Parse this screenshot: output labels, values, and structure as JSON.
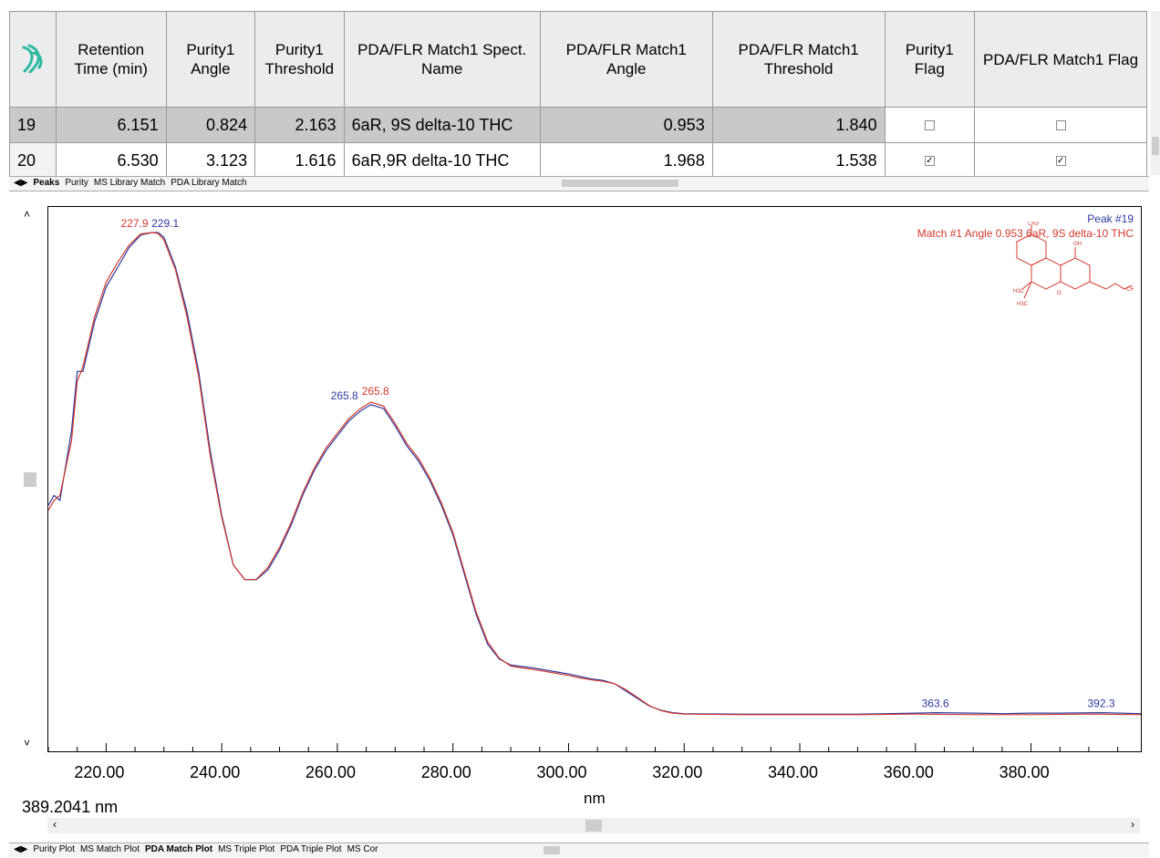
{
  "table": {
    "headers": [
      "",
      "Retention Time (min)",
      "Purity1 Angle",
      "Purity1 Threshold",
      "PDA/FLR Match1 Spect. Name",
      "PDA/FLR Match1 Angle",
      "PDA/FLR Match1 Threshold",
      "Purity1 Flag",
      "PDA/FLR Match1 Flag"
    ],
    "rows": [
      {
        "id": "19",
        "rt": "6.151",
        "purity_angle": "0.824",
        "purity_threshold": "2.163",
        "spect_name": "6aR, 9S delta-10 THC",
        "match_angle": "0.953",
        "match_threshold": "1.840",
        "purity_flag": false,
        "match_flag": false,
        "selected": true
      },
      {
        "id": "20",
        "rt": "6.530",
        "purity_angle": "3.123",
        "purity_threshold": "1.616",
        "spect_name": "6aR,9R delta-10 THC",
        "match_angle": "1.968",
        "match_threshold": "1.538",
        "purity_flag": true,
        "match_flag": true,
        "selected": false
      }
    ]
  },
  "top_tabs": [
    "Peaks",
    "Purity",
    "MS Library Match",
    "PDA Library Match"
  ],
  "top_tabs_active": "Peaks",
  "bottom_tabs": [
    "Purity Plot",
    "MS Match Plot",
    "PDA Match Plot",
    "MS Triple Plot",
    "PDA Triple Plot",
    "MS Cor"
  ],
  "bottom_tabs_active": "PDA Match Plot",
  "chart_data": {
    "type": "line",
    "xlabel": "nm",
    "xlim": [
      210,
      399
    ],
    "ylim": [
      0,
      1
    ],
    "x_ticks": [
      "220.00",
      "240.00",
      "260.00",
      "280.00",
      "300.00",
      "320.00",
      "340.00",
      "360.00",
      "380.00"
    ],
    "legend": {
      "peak": "Peak #19",
      "match": "Match #1 Angle 0.953 6aR, 9S delta-10 THC"
    },
    "series": [
      {
        "name": "Peak #19",
        "color": "#2e3a9e",
        "points": [
          [
            210,
            0.45
          ],
          [
            211,
            0.47
          ],
          [
            212,
            0.46
          ],
          [
            214,
            0.6
          ],
          [
            215,
            0.72
          ],
          [
            216,
            0.72
          ],
          [
            218,
            0.82
          ],
          [
            220,
            0.89
          ],
          [
            222,
            0.93
          ],
          [
            224,
            0.97
          ],
          [
            226,
            0.995
          ],
          [
            228,
            1.0
          ],
          [
            229,
            1.0
          ],
          [
            230,
            0.99
          ],
          [
            232,
            0.93
          ],
          [
            234,
            0.84
          ],
          [
            236,
            0.72
          ],
          [
            238,
            0.56
          ],
          [
            240,
            0.43
          ],
          [
            242,
            0.33
          ],
          [
            244,
            0.3
          ],
          [
            246,
            0.3
          ],
          [
            248,
            0.32
          ],
          [
            250,
            0.36
          ],
          [
            252,
            0.41
          ],
          [
            254,
            0.47
          ],
          [
            256,
            0.52
          ],
          [
            258,
            0.56
          ],
          [
            260,
            0.59
          ],
          [
            262,
            0.62
          ],
          [
            264,
            0.64
          ],
          [
            265.8,
            0.653
          ],
          [
            268,
            0.645
          ],
          [
            270,
            0.61
          ],
          [
            272,
            0.57
          ],
          [
            274,
            0.54
          ],
          [
            276,
            0.5
          ],
          [
            278,
            0.45
          ],
          [
            280,
            0.39
          ],
          [
            282,
            0.31
          ],
          [
            284,
            0.23
          ],
          [
            286,
            0.17
          ],
          [
            288,
            0.14
          ],
          [
            290,
            0.128
          ],
          [
            292,
            0.125
          ],
          [
            294,
            0.122
          ],
          [
            296,
            0.118
          ],
          [
            298,
            0.114
          ],
          [
            300,
            0.11
          ],
          [
            302,
            0.105
          ],
          [
            304,
            0.1
          ],
          [
            306,
            0.097
          ],
          [
            308,
            0.09
          ],
          [
            310,
            0.075
          ],
          [
            312,
            0.06
          ],
          [
            314,
            0.045
          ],
          [
            316,
            0.037
          ],
          [
            318,
            0.032
          ],
          [
            320,
            0.03
          ],
          [
            330,
            0.029
          ],
          [
            340,
            0.029
          ],
          [
            350,
            0.029
          ],
          [
            355,
            0.03
          ],
          [
            360,
            0.031
          ],
          [
            363.6,
            0.032
          ],
          [
            370,
            0.031
          ],
          [
            375,
            0.03
          ],
          [
            380,
            0.031
          ],
          [
            385,
            0.031
          ],
          [
            392.3,
            0.032
          ],
          [
            399,
            0.03
          ]
        ]
      },
      {
        "name": "Match #1 Angle 0.953 6aR, 9S delta-10 THC",
        "color": "#d33a2f",
        "points": [
          [
            210,
            0.44
          ],
          [
            211,
            0.46
          ],
          [
            212,
            0.47
          ],
          [
            214,
            0.58
          ],
          [
            215,
            0.7
          ],
          [
            216,
            0.73
          ],
          [
            218,
            0.83
          ],
          [
            220,
            0.9
          ],
          [
            222,
            0.94
          ],
          [
            224,
            0.975
          ],
          [
            226,
            0.997
          ],
          [
            227.9,
            1.0
          ],
          [
            229,
            0.998
          ],
          [
            230,
            0.985
          ],
          [
            232,
            0.925
          ],
          [
            234,
            0.83
          ],
          [
            236,
            0.71
          ],
          [
            238,
            0.55
          ],
          [
            240,
            0.425
          ],
          [
            242,
            0.33
          ],
          [
            244,
            0.3
          ],
          [
            246,
            0.301
          ],
          [
            248,
            0.325
          ],
          [
            250,
            0.365
          ],
          [
            252,
            0.415
          ],
          [
            254,
            0.475
          ],
          [
            256,
            0.525
          ],
          [
            258,
            0.565
          ],
          [
            260,
            0.595
          ],
          [
            262,
            0.625
          ],
          [
            264,
            0.645
          ],
          [
            265.8,
            0.658
          ],
          [
            268,
            0.65
          ],
          [
            270,
            0.615
          ],
          [
            272,
            0.575
          ],
          [
            274,
            0.545
          ],
          [
            276,
            0.505
          ],
          [
            278,
            0.455
          ],
          [
            280,
            0.395
          ],
          [
            282,
            0.315
          ],
          [
            284,
            0.235
          ],
          [
            286,
            0.175
          ],
          [
            288,
            0.142
          ],
          [
            290,
            0.126
          ],
          [
            292,
            0.122
          ],
          [
            294,
            0.119
          ],
          [
            296,
            0.115
          ],
          [
            298,
            0.111
          ],
          [
            300,
            0.107
          ],
          [
            302,
            0.102
          ],
          [
            304,
            0.098
          ],
          [
            306,
            0.095
          ],
          [
            308,
            0.09
          ],
          [
            310,
            0.078
          ],
          [
            312,
            0.062
          ],
          [
            314,
            0.046
          ],
          [
            316,
            0.036
          ],
          [
            318,
            0.031
          ],
          [
            320,
            0.029
          ],
          [
            330,
            0.028
          ],
          [
            340,
            0.028
          ],
          [
            350,
            0.028
          ],
          [
            360,
            0.029
          ],
          [
            370,
            0.028
          ],
          [
            380,
            0.028
          ],
          [
            390,
            0.029
          ],
          [
            399,
            0.028
          ]
        ]
      }
    ],
    "annotations": [
      {
        "text": "227.9",
        "x": 227.9,
        "y": 1.0,
        "series": 1
      },
      {
        "text": "229.1",
        "x": 229.1,
        "y": 1.0,
        "series": 0
      },
      {
        "text": "265.8",
        "x": 265.8,
        "y": 0.653,
        "series": 0
      },
      {
        "text": "265.8",
        "x": 265.8,
        "y": 0.658,
        "series": 1
      },
      {
        "text": "363.6",
        "x": 363.6,
        "y": 0.032,
        "series": 0
      },
      {
        "text": "392.3",
        "x": 392.3,
        "y": 0.032,
        "series": 0
      }
    ]
  },
  "cursor_readout": "389.2041 nm",
  "colors": {
    "peak": "#2e3a9e",
    "match": "#d33a2f",
    "header_bg": "#ececec",
    "selected_row": "#c9c9c9",
    "logo": "#2eb8a0"
  }
}
